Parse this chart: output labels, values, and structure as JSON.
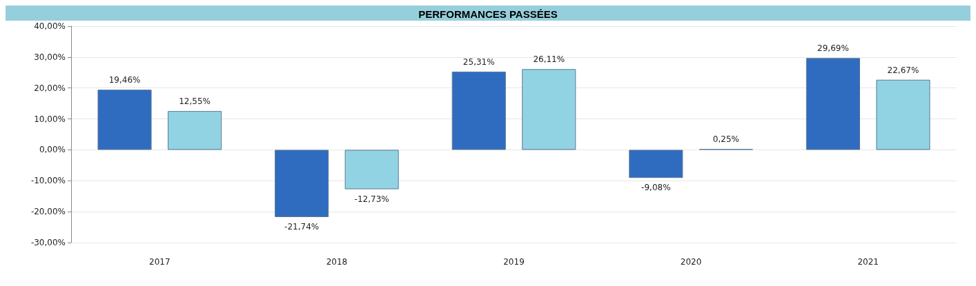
{
  "chart_data": {
    "type": "bar",
    "title": "PERFORMANCES PASSÉES",
    "categories": [
      "2017",
      "2018",
      "2019",
      "2020",
      "2021"
    ],
    "series": [
      {
        "color": "#2f6cc0",
        "values": [
          19.46,
          -21.74,
          25.31,
          -9.08,
          29.69
        ],
        "value_labels": [
          "19,46%",
          "-21,74%",
          "25,31%",
          "-9,08%",
          "29,69%"
        ]
      },
      {
        "color": "#92d3e3",
        "values": [
          12.55,
          -12.73,
          26.11,
          0.25,
          22.67
        ],
        "value_labels": [
          "12,55%",
          "-12,73%",
          "26,11%",
          "0,25%",
          "22,67%"
        ]
      }
    ],
    "ylim": [
      -30,
      40
    ],
    "yticks": [
      {
        "value": -30,
        "label": "-30,00%"
      },
      {
        "value": -20,
        "label": "-20,00%"
      },
      {
        "value": -10,
        "label": "-10,00%"
      },
      {
        "value": 0,
        "label": "0,00%"
      },
      {
        "value": 10,
        "label": "10,00%"
      },
      {
        "value": 20,
        "label": "20,00%"
      },
      {
        "value": 30,
        "label": "30,00%"
      },
      {
        "value": 40,
        "label": "40,00%"
      }
    ],
    "grid": "y"
  }
}
